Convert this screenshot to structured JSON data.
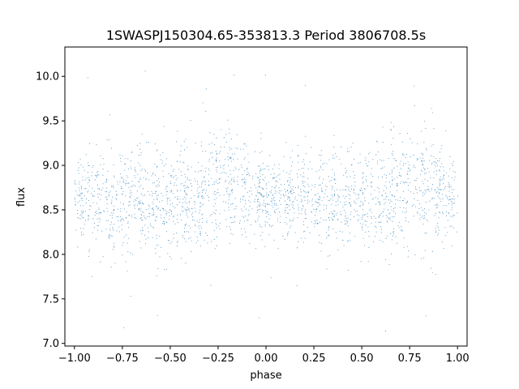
{
  "chart_data": {
    "type": "scatter",
    "title": "1SWASPJ150304.65-353813.3 Period 3806708.5s",
    "xlabel": "phase",
    "ylabel": "flux",
    "xlim": [
      -1.05,
      1.05
    ],
    "ylim": [
      6.97,
      10.33
    ],
    "x_ticks": [
      -1.0,
      -0.75,
      -0.5,
      -0.25,
      0.0,
      0.25,
      0.5,
      0.75,
      1.0
    ],
    "x_tick_labels": [
      "−1.00",
      "−0.75",
      "−0.50",
      "−0.25",
      "0.00",
      "0.25",
      "0.50",
      "0.75",
      "1.00"
    ],
    "y_ticks": [
      7.0,
      7.5,
      8.0,
      8.5,
      9.0,
      9.5,
      10.0
    ],
    "y_tick_labels": [
      "7.0",
      "7.5",
      "8.0",
      "8.5",
      "9.0",
      "9.5",
      "10.0"
    ],
    "grid": false,
    "legend": "none",
    "series": [
      {
        "color": "#1f77b4",
        "marker_size": 1,
        "point_count_approx": 18000,
        "profile_x": [
          -1.0,
          -0.9,
          -0.8,
          -0.7,
          -0.6,
          -0.5,
          -0.4,
          -0.3,
          -0.2,
          -0.1,
          0.0,
          0.1,
          0.2,
          0.3,
          0.4,
          0.5,
          0.6,
          0.7,
          0.8,
          0.9,
          1.0
        ],
        "profile_median_y": [
          8.65,
          8.58,
          8.55,
          8.68,
          8.62,
          8.58,
          8.62,
          8.72,
          8.78,
          8.68,
          8.62,
          8.6,
          8.62,
          8.65,
          8.62,
          8.58,
          8.6,
          8.68,
          8.78,
          8.7,
          8.62
        ],
        "profile_spread": [
          0.22,
          0.25,
          0.28,
          0.25,
          0.28,
          0.3,
          0.28,
          0.3,
          0.32,
          0.25,
          0.22,
          0.22,
          0.28,
          0.25,
          0.28,
          0.3,
          0.28,
          0.28,
          0.32,
          0.28,
          0.22
        ]
      }
    ]
  }
}
